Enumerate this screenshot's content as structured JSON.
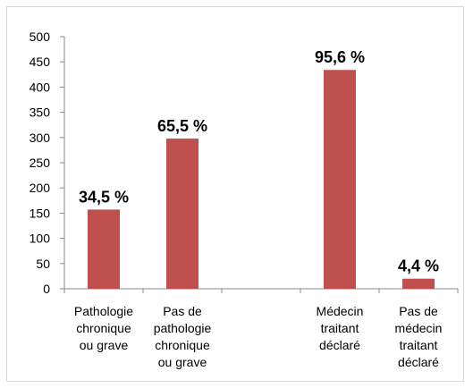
{
  "chart_data": {
    "type": "bar",
    "categories": [
      "Pathologie\nchronique\nou grave",
      "Pas de\npathologie\nchronique\nou grave",
      null,
      "Médecin\ntraitant\ndéclaré",
      "Pas de\nmédecin\ntraitant\ndéclaré"
    ],
    "values": [
      157,
      298,
      null,
      434,
      20
    ],
    "value_labels": [
      "34,5 %",
      "65,5 %",
      null,
      "95,6 %",
      "4,4 %"
    ],
    "color": "#c0504d",
    "ylim": [
      0,
      500
    ],
    "yticks": [
      0,
      50,
      100,
      150,
      200,
      250,
      300,
      350,
      400,
      450,
      500
    ],
    "grid": false
  }
}
